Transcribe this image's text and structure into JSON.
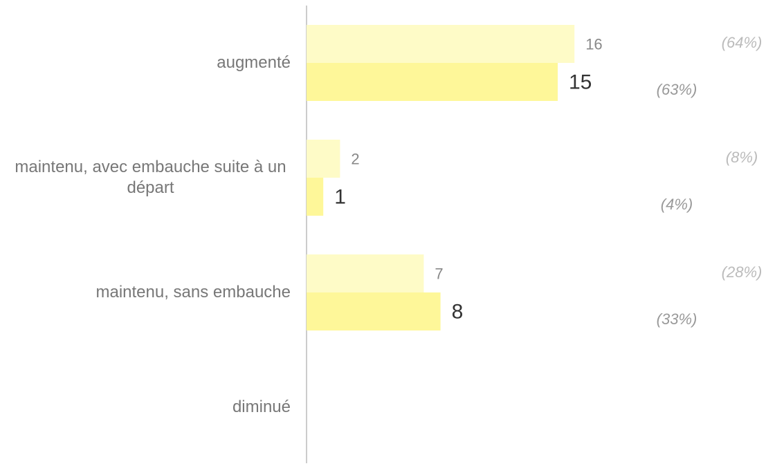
{
  "chart_data": {
    "type": "bar",
    "orientation": "horizontal",
    "categories": [
      "augmenté",
      "maintenu, avec embauche suite à un départ",
      "maintenu, sans embauche",
      "diminué"
    ],
    "series": [
      {
        "color": "#fefbc7",
        "values": [
          16,
          2,
          7,
          null
        ],
        "percent_labels": [
          "(64%)",
          "(8%)",
          "(28%)",
          null
        ]
      },
      {
        "color": "#fef799",
        "values": [
          15,
          1,
          8,
          null
        ],
        "percent_labels": [
          "(63%)",
          "(4%)",
          "(33%)",
          null
        ]
      }
    ]
  }
}
